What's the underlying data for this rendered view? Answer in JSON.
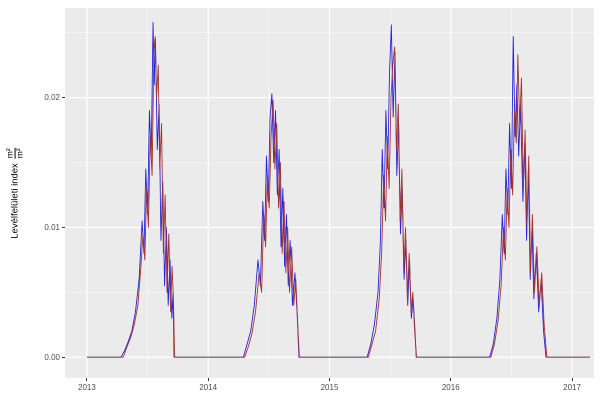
{
  "figure": {
    "background": "#FFFFFF",
    "panel_background": "#EBEBEB",
    "grid_major_color": "#FFFFFF",
    "grid_minor_color": "#FFFFFF",
    "tick_text_color": "#4D4D4D",
    "series_blue_color": "#2525DD",
    "series_red_color": "#A33434"
  },
  "y_axis": {
    "title_text": "Levélfelületi index",
    "frac_num": "m²",
    "frac_den": "m²",
    "tick_labels": [
      "0.00",
      "0.01",
      "0.02"
    ],
    "tick_values": [
      0,
      0.01,
      0.02
    ],
    "minor_values": [
      0.005,
      0.015,
      0.025
    ]
  },
  "x_axis": {
    "tick_labels": [
      "2013",
      "2014",
      "2015",
      "2016",
      "2017"
    ],
    "tick_values": [
      2013,
      2014,
      2015,
      2016,
      2017
    ],
    "minor_values": [
      2013.5,
      2014.5,
      2015.5,
      2016.5
    ]
  },
  "chart_data": {
    "type": "line",
    "title": "",
    "xlabel": "",
    "ylabel": "Levélfelületi index m²/m²",
    "grid": "on",
    "legend": "none",
    "xlim": [
      2012.819,
      2017.181
    ],
    "ylim": [
      -0.0016,
      0.0269
    ],
    "series": [
      {
        "name": "modelled-blue",
        "color": "#2525DD",
        "points": [
          [
            2013.0,
            0
          ],
          [
            2013.28,
            0
          ],
          [
            2013.31,
            0.0005
          ],
          [
            2013.34,
            0.0012
          ],
          [
            2013.37,
            0.002
          ],
          [
            2013.4,
            0.0035
          ],
          [
            2013.43,
            0.006
          ],
          [
            2013.455,
            0.0105
          ],
          [
            2013.47,
            0.008
          ],
          [
            2013.485,
            0.0145
          ],
          [
            2013.5,
            0.011
          ],
          [
            2013.515,
            0.019
          ],
          [
            2013.53,
            0.0155
          ],
          [
            2013.545,
            0.0258
          ],
          [
            2013.555,
            0.021
          ],
          [
            2013.565,
            0.0245
          ],
          [
            2013.58,
            0.016
          ],
          [
            2013.595,
            0.0195
          ],
          [
            2013.61,
            0.009
          ],
          [
            2013.625,
            0.0135
          ],
          [
            2013.64,
            0.0055
          ],
          [
            2013.655,
            0.01
          ],
          [
            2013.67,
            0.004
          ],
          [
            2013.685,
            0.0075
          ],
          [
            2013.7,
            0.003
          ],
          [
            2013.71,
            0.005
          ],
          [
            2013.718,
            0
          ],
          [
            2014.29,
            0
          ],
          [
            2014.32,
            0.001
          ],
          [
            2014.35,
            0.002
          ],
          [
            2014.38,
            0.004
          ],
          [
            2014.41,
            0.0075
          ],
          [
            2014.43,
            0.0055
          ],
          [
            2014.45,
            0.012
          ],
          [
            2014.465,
            0.009
          ],
          [
            2014.48,
            0.0155
          ],
          [
            2014.495,
            0.012
          ],
          [
            2014.51,
            0.0185
          ],
          [
            2014.525,
            0.0203
          ],
          [
            2014.54,
            0.015
          ],
          [
            2014.555,
            0.019
          ],
          [
            2014.57,
            0.0125
          ],
          [
            2014.585,
            0.016
          ],
          [
            2014.6,
            0.0085
          ],
          [
            2014.615,
            0.013
          ],
          [
            2014.63,
            0.007
          ],
          [
            2014.645,
            0.011
          ],
          [
            2014.66,
            0.0055
          ],
          [
            2014.675,
            0.009
          ],
          [
            2014.695,
            0.004
          ],
          [
            2014.715,
            0.0065
          ],
          [
            2014.735,
            0.003
          ],
          [
            2014.748,
            0
          ],
          [
            2015.31,
            0
          ],
          [
            2015.34,
            0.001
          ],
          [
            2015.37,
            0.0025
          ],
          [
            2015.4,
            0.005
          ],
          [
            2015.42,
            0.009
          ],
          [
            2015.435,
            0.016
          ],
          [
            2015.45,
            0.0115
          ],
          [
            2015.465,
            0.019
          ],
          [
            2015.48,
            0.0145
          ],
          [
            2015.495,
            0.022
          ],
          [
            2015.51,
            0.0256
          ],
          [
            2015.525,
            0.0185
          ],
          [
            2015.54,
            0.0235
          ],
          [
            2015.555,
            0.014
          ],
          [
            2015.57,
            0.018
          ],
          [
            2015.585,
            0.0095
          ],
          [
            2015.6,
            0.013
          ],
          [
            2015.615,
            0.006
          ],
          [
            2015.63,
            0.009
          ],
          [
            2015.645,
            0.004
          ],
          [
            2015.66,
            0.0075
          ],
          [
            2015.675,
            0.003
          ],
          [
            2015.69,
            0.0045
          ],
          [
            2015.705,
            0.002
          ],
          [
            2015.715,
            0
          ],
          [
            2016.32,
            0
          ],
          [
            2016.35,
            0.001
          ],
          [
            2016.38,
            0.003
          ],
          [
            2016.405,
            0.006
          ],
          [
            2016.425,
            0.011
          ],
          [
            2016.44,
            0.008
          ],
          [
            2016.455,
            0.0145
          ],
          [
            2016.47,
            0.011
          ],
          [
            2016.485,
            0.018
          ],
          [
            2016.5,
            0.013
          ],
          [
            2016.515,
            0.0247
          ],
          [
            2016.53,
            0.017
          ],
          [
            2016.545,
            0.021
          ],
          [
            2016.56,
            0.0155
          ],
          [
            2016.575,
            0.0195
          ],
          [
            2016.595,
            0.012
          ],
          [
            2016.61,
            0.0165
          ],
          [
            2016.625,
            0.009
          ],
          [
            2016.64,
            0.0145
          ],
          [
            2016.655,
            0.006
          ],
          [
            2016.67,
            0.01
          ],
          [
            2016.685,
            0.0045
          ],
          [
            2016.705,
            0.008
          ],
          [
            2016.725,
            0.0035
          ],
          [
            2016.745,
            0.006
          ],
          [
            2016.765,
            0.002
          ],
          [
            2016.785,
            0
          ],
          [
            2017.15,
            0
          ]
        ]
      },
      {
        "name": "observed-darkred",
        "color": "#A33434",
        "points": [
          [
            2013.0,
            0
          ],
          [
            2013.3,
            0
          ],
          [
            2013.33,
            0.0008
          ],
          [
            2013.36,
            0.0015
          ],
          [
            2013.39,
            0.0025
          ],
          [
            2013.42,
            0.004
          ],
          [
            2013.445,
            0.007
          ],
          [
            2013.462,
            0.0095
          ],
          [
            2013.477,
            0.0075
          ],
          [
            2013.492,
            0.013
          ],
          [
            2013.507,
            0.01
          ],
          [
            2013.522,
            0.017
          ],
          [
            2013.537,
            0.014
          ],
          [
            2013.552,
            0.0235
          ],
          [
            2013.562,
            0.0247
          ],
          [
            2013.574,
            0.02
          ],
          [
            2013.588,
            0.0225
          ],
          [
            2013.6,
            0.0145
          ],
          [
            2013.615,
            0.018
          ],
          [
            2013.63,
            0.008
          ],
          [
            2013.645,
            0.0125
          ],
          [
            2013.66,
            0.005
          ],
          [
            2013.675,
            0.0095
          ],
          [
            2013.69,
            0.0035
          ],
          [
            2013.702,
            0.007
          ],
          [
            2013.713,
            0.0045
          ],
          [
            2013.723,
            0
          ],
          [
            2014.3,
            0
          ],
          [
            2014.33,
            0.0008
          ],
          [
            2014.36,
            0.0018
          ],
          [
            2014.39,
            0.0035
          ],
          [
            2014.42,
            0.0065
          ],
          [
            2014.44,
            0.005
          ],
          [
            2014.458,
            0.011
          ],
          [
            2014.473,
            0.0085
          ],
          [
            2014.488,
            0.014
          ],
          [
            2014.503,
            0.0115
          ],
          [
            2014.518,
            0.017
          ],
          [
            2014.535,
            0.0198
          ],
          [
            2014.55,
            0.0145
          ],
          [
            2014.565,
            0.018
          ],
          [
            2014.58,
            0.0115
          ],
          [
            2014.595,
            0.015
          ],
          [
            2014.61,
            0.008
          ],
          [
            2014.625,
            0.012
          ],
          [
            2014.64,
            0.0065
          ],
          [
            2014.655,
            0.01
          ],
          [
            2014.67,
            0.005
          ],
          [
            2014.688,
            0.0085
          ],
          [
            2014.705,
            0.004
          ],
          [
            2014.722,
            0.006
          ],
          [
            2014.738,
            0.0025
          ],
          [
            2014.752,
            0
          ],
          [
            2015.32,
            0
          ],
          [
            2015.35,
            0.001
          ],
          [
            2015.38,
            0.002
          ],
          [
            2015.41,
            0.0045
          ],
          [
            2015.43,
            0.008
          ],
          [
            2015.447,
            0.014
          ],
          [
            2015.462,
            0.0105
          ],
          [
            2015.477,
            0.017
          ],
          [
            2015.492,
            0.013
          ],
          [
            2015.507,
            0.02
          ],
          [
            2015.522,
            0.0225
          ],
          [
            2015.537,
            0.0239
          ],
          [
            2015.552,
            0.016
          ],
          [
            2015.567,
            0.0195
          ],
          [
            2015.582,
            0.0105
          ],
          [
            2015.597,
            0.0145
          ],
          [
            2015.612,
            0.0065
          ],
          [
            2015.627,
            0.01
          ],
          [
            2015.642,
            0.0045
          ],
          [
            2015.657,
            0.008
          ],
          [
            2015.672,
            0.0035
          ],
          [
            2015.687,
            0.005
          ],
          [
            2015.702,
            0.002
          ],
          [
            2015.718,
            0
          ],
          [
            2016.33,
            0
          ],
          [
            2016.36,
            0.001
          ],
          [
            2016.39,
            0.0028
          ],
          [
            2016.415,
            0.0055
          ],
          [
            2016.435,
            0.01
          ],
          [
            2016.45,
            0.0075
          ],
          [
            2016.465,
            0.013
          ],
          [
            2016.48,
            0.01
          ],
          [
            2016.495,
            0.016
          ],
          [
            2016.51,
            0.0125
          ],
          [
            2016.525,
            0.019
          ],
          [
            2016.54,
            0.0165
          ],
          [
            2016.553,
            0.0233
          ],
          [
            2016.568,
            0.018
          ],
          [
            2016.583,
            0.0215
          ],
          [
            2016.598,
            0.013
          ],
          [
            2016.613,
            0.0175
          ],
          [
            2016.628,
            0.01
          ],
          [
            2016.643,
            0.0155
          ],
          [
            2016.658,
            0.0065
          ],
          [
            2016.673,
            0.011
          ],
          [
            2016.69,
            0.005
          ],
          [
            2016.71,
            0.0085
          ],
          [
            2016.73,
            0.004
          ],
          [
            2016.75,
            0.0065
          ],
          [
            2016.77,
            0.0025
          ],
          [
            2016.792,
            0
          ],
          [
            2017.15,
            0
          ]
        ]
      }
    ]
  }
}
